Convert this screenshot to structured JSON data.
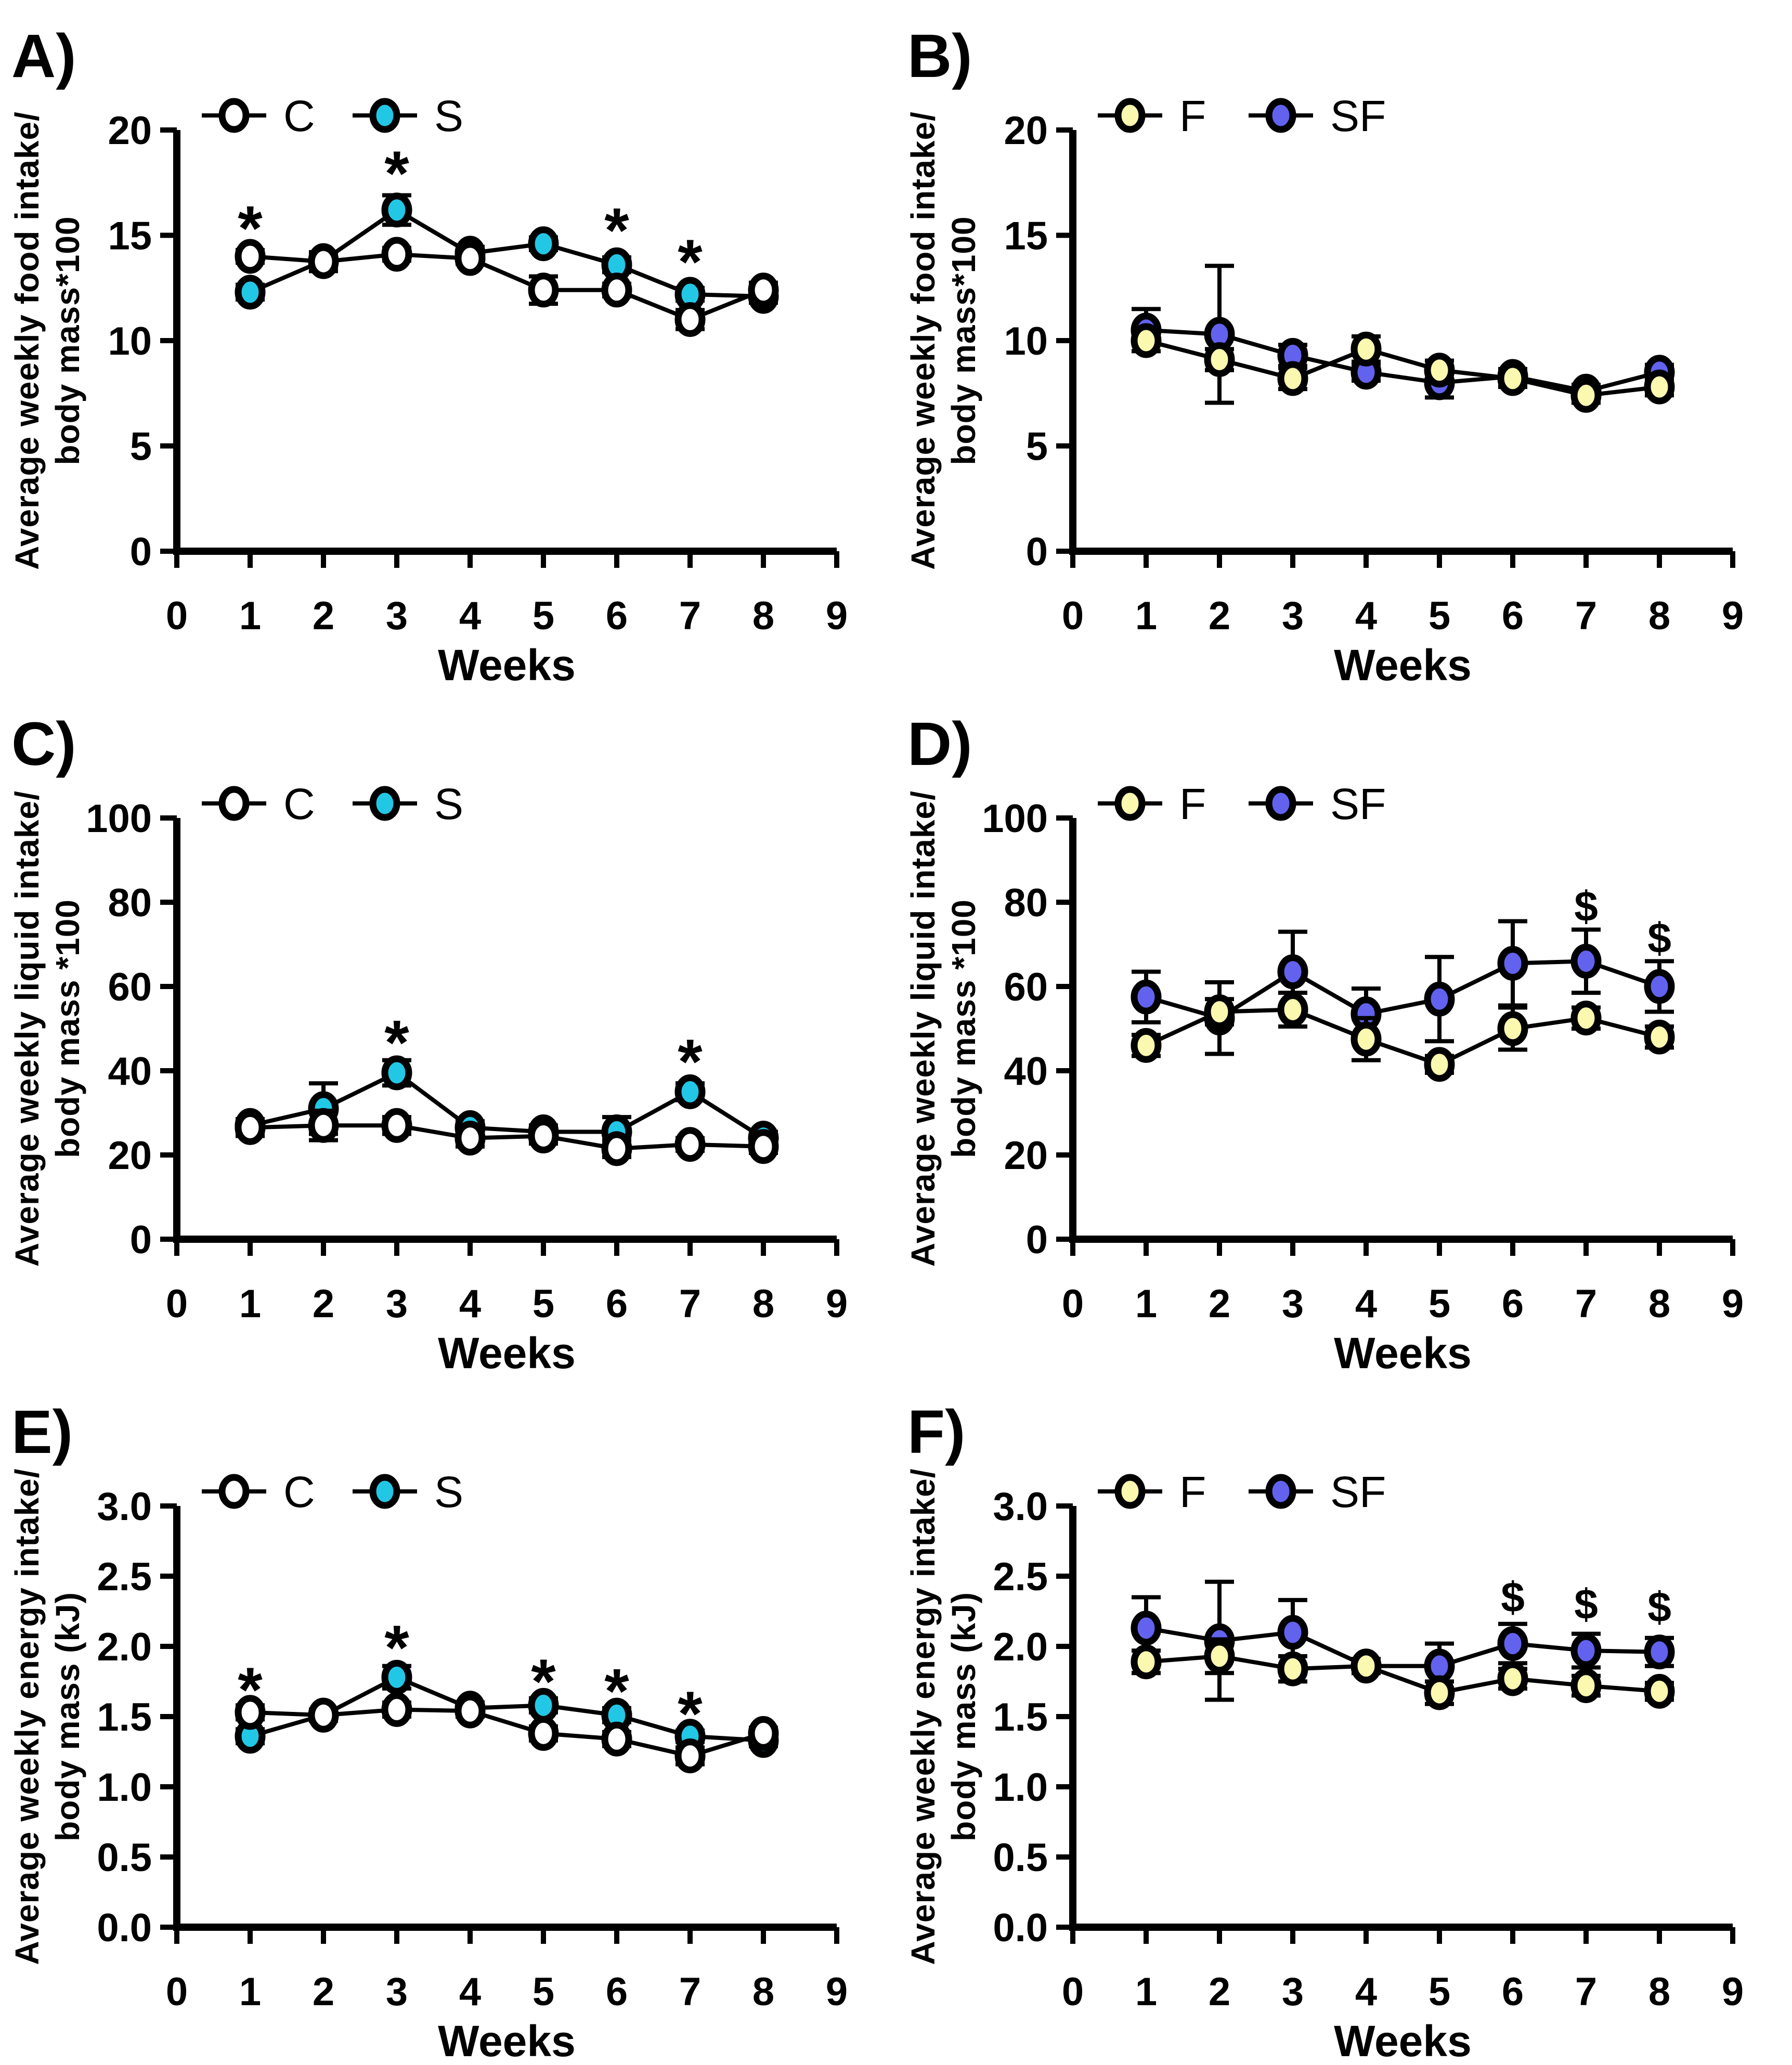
{
  "figure": {
    "background": "#FFFFFF",
    "line_color": "#000000",
    "marker_outline": "#000000",
    "group_colors": {
      "C": "#FFFFFF",
      "S": "#22C7E6",
      "F": "#FBF8AF",
      "SF": "#6262EF"
    }
  },
  "chart_data": [
    {
      "id": "A",
      "label": "A)",
      "type": "line",
      "xlabel": "Weeks",
      "ylabel_lines": [
        "Average weekly food intake/",
        "body mass*100"
      ],
      "xlim": [
        0,
        9
      ],
      "ylim": [
        0,
        20
      ],
      "xtick_labels": [
        "0",
        "1",
        "2",
        "3",
        "4",
        "5",
        "6",
        "7",
        "8",
        "9"
      ],
      "ytick_values": [
        0,
        5,
        10,
        15,
        20
      ],
      "ytick_labels": [
        "0",
        "5",
        "10",
        "15",
        "20"
      ],
      "legend": [
        {
          "label": "C",
          "fill": "#FFFFFF"
        },
        {
          "label": "S",
          "fill": "#22C7E6"
        }
      ],
      "series": [
        {
          "name": "C",
          "fill": "#FFFFFF",
          "x": [
            1,
            2,
            3,
            4,
            5,
            6,
            7,
            8
          ],
          "y": [
            14.0,
            13.75,
            14.1,
            13.9,
            12.4,
            12.4,
            11.0,
            12.4
          ],
          "err": [
            0.3,
            0.45,
            0.3,
            0.25,
            0.65,
            0.3,
            0.45,
            0.35
          ]
        },
        {
          "name": "S",
          "fill": "#22C7E6",
          "x": [
            1,
            2,
            3,
            4,
            5,
            6,
            7,
            8
          ],
          "y": [
            12.3,
            13.8,
            16.2,
            14.15,
            14.6,
            13.6,
            12.2,
            12.1
          ],
          "err": [
            0.35,
            0.3,
            0.7,
            0.3,
            0.3,
            0.35,
            0.3,
            0.3
          ]
        }
      ],
      "annotations": [
        {
          "x": 1,
          "y": 15.4,
          "text": "*"
        },
        {
          "x": 3,
          "y": 18.0,
          "text": "*"
        },
        {
          "x": 6,
          "y": 15.3,
          "text": "*"
        },
        {
          "x": 7,
          "y": 13.8,
          "text": "*"
        }
      ]
    },
    {
      "id": "B",
      "label": "B)",
      "type": "line",
      "xlabel": "Weeks",
      "ylabel_lines": [
        "Average weekly food intake/",
        "body mass*100"
      ],
      "xlim": [
        0,
        9
      ],
      "ylim": [
        0,
        20
      ],
      "xtick_labels": [
        "0",
        "1",
        "2",
        "3",
        "4",
        "5",
        "6",
        "7",
        "8",
        "9"
      ],
      "ytick_values": [
        0,
        5,
        10,
        15,
        20
      ],
      "ytick_labels": [
        "0",
        "5",
        "10",
        "15",
        "20"
      ],
      "legend": [
        {
          "label": "F",
          "fill": "#FBF8AF"
        },
        {
          "label": "SF",
          "fill": "#6262EF"
        }
      ],
      "series": [
        {
          "name": "F",
          "fill": "#FBF8AF",
          "x": [
            1,
            2,
            3,
            4,
            5,
            6,
            7,
            8
          ],
          "y": [
            10.0,
            9.1,
            8.2,
            9.6,
            8.6,
            8.2,
            7.4,
            7.8
          ],
          "err": [
            0.5,
            0.5,
            0.5,
            0.6,
            0.45,
            0.4,
            0.35,
            0.4
          ]
        },
        {
          "name": "SF",
          "fill": "#6262EF",
          "x": [
            1,
            2,
            3,
            4,
            5,
            6,
            7,
            8
          ],
          "y": [
            10.5,
            10.3,
            9.3,
            8.5,
            8.0,
            8.3,
            7.6,
            8.5
          ],
          "err": [
            1.0,
            3.25,
            0.5,
            0.4,
            0.7,
            0.35,
            0.3,
            0.35
          ]
        }
      ],
      "annotations": []
    },
    {
      "id": "C",
      "label": "C)",
      "type": "line",
      "xlabel": "Weeks",
      "ylabel_lines": [
        "Average weekly liquid intake/",
        "body mass *100"
      ],
      "xlim": [
        0,
        9
      ],
      "ylim": [
        0,
        100
      ],
      "xtick_labels": [
        "0",
        "1",
        "2",
        "3",
        "4",
        "5",
        "6",
        "7",
        "8",
        "9"
      ],
      "ytick_values": [
        0,
        20,
        40,
        60,
        80,
        100
      ],
      "ytick_labels": [
        "0",
        "20",
        "40",
        "60",
        "80",
        "100"
      ],
      "legend": [
        {
          "label": "C",
          "fill": "#FFFFFF"
        },
        {
          "label": "S",
          "fill": "#22C7E6"
        }
      ],
      "series": [
        {
          "name": "C",
          "fill": "#FFFFFF",
          "x": [
            1,
            2,
            3,
            4,
            5,
            6,
            7,
            8
          ],
          "y": [
            26.5,
            27,
            27,
            24,
            24.5,
            21.5,
            22.5,
            22
          ],
          "err": [
            2,
            3.5,
            2,
            2,
            1.8,
            2,
            1.5,
            1.5
          ]
        },
        {
          "name": "S",
          "fill": "#22C7E6",
          "x": [
            1,
            2,
            3,
            4,
            5,
            6,
            7,
            8
          ],
          "y": [
            27,
            31,
            39.5,
            26.5,
            25.5,
            25.5,
            35,
            24
          ],
          "err": [
            1.5,
            6,
            3,
            1.5,
            1.5,
            3.5,
            2,
            1.5
          ]
        }
      ],
      "annotations": [
        {
          "x": 3,
          "y": 47,
          "text": "*"
        },
        {
          "x": 7,
          "y": 42.5,
          "text": "*"
        }
      ]
    },
    {
      "id": "D",
      "label": "D)",
      "type": "line",
      "xlabel": "Weeks",
      "ylabel_lines": [
        "Average weekly liquid intake/",
        "body mass *100"
      ],
      "xlim": [
        0,
        9
      ],
      "ylim": [
        0,
        100
      ],
      "xtick_labels": [
        "0",
        "1",
        "2",
        "3",
        "4",
        "5",
        "6",
        "7",
        "8",
        "9"
      ],
      "ytick_values": [
        0,
        20,
        40,
        60,
        80,
        100
      ],
      "ytick_labels": [
        "0",
        "20",
        "40",
        "60",
        "80",
        "100"
      ],
      "legend": [
        {
          "label": "F",
          "fill": "#FBF8AF"
        },
        {
          "label": "SF",
          "fill": "#6262EF"
        }
      ],
      "series": [
        {
          "name": "F",
          "fill": "#FBF8AF",
          "x": [
            1,
            2,
            3,
            4,
            5,
            6,
            7,
            8
          ],
          "y": [
            46,
            54,
            54.5,
            47.5,
            41.5,
            50,
            52.5,
            48
          ],
          "err": [
            2.5,
            3,
            4,
            5,
            2,
            5,
            2.5,
            2.5
          ]
        },
        {
          "name": "SF",
          "fill": "#6262EF",
          "x": [
            1,
            2,
            3,
            4,
            5,
            6,
            7,
            8
          ],
          "y": [
            57.5,
            52.5,
            63.5,
            53.5,
            57,
            65.5,
            66,
            60
          ],
          "err": [
            6,
            8.5,
            9.5,
            6,
            10,
            10,
            7.5,
            6
          ]
        }
      ],
      "annotations": [
        {
          "x": 7,
          "y": 79,
          "text": "$"
        },
        {
          "x": 8,
          "y": 71.5,
          "text": "$"
        }
      ]
    },
    {
      "id": "E",
      "label": "E)",
      "type": "line",
      "xlabel": "Weeks",
      "ylabel_lines": [
        "Average weekly energy intake/",
        "body mass (kJ)"
      ],
      "xlim": [
        0,
        9
      ],
      "ylim": [
        0,
        3
      ],
      "xtick_labels": [
        "0",
        "1",
        "2",
        "3",
        "4",
        "5",
        "6",
        "7",
        "8",
        "9"
      ],
      "ytick_values": [
        0,
        0.5,
        1.0,
        1.5,
        2.0,
        2.5,
        3.0
      ],
      "ytick_labels": [
        "0.0",
        "0.5",
        "1.0",
        "1.5",
        "2.0",
        "2.5",
        "3.0"
      ],
      "legend": [
        {
          "label": "C",
          "fill": "#FFFFFF"
        },
        {
          "label": "S",
          "fill": "#22C7E6"
        }
      ],
      "series": [
        {
          "name": "C",
          "fill": "#FFFFFF",
          "x": [
            1,
            2,
            3,
            4,
            5,
            6,
            7,
            8
          ],
          "y": [
            1.53,
            1.51,
            1.55,
            1.54,
            1.38,
            1.34,
            1.22,
            1.38
          ],
          "err": [
            0.05,
            0.04,
            0.05,
            0.04,
            0.05,
            0.05,
            0.06,
            0.04
          ]
        },
        {
          "name": "S",
          "fill": "#22C7E6",
          "x": [
            1,
            2,
            3,
            4,
            5,
            6,
            7,
            8
          ],
          "y": [
            1.36,
            1.51,
            1.78,
            1.56,
            1.58,
            1.51,
            1.36,
            1.33
          ],
          "err": [
            0.05,
            0.04,
            0.08,
            0.04,
            0.05,
            0.05,
            0.04,
            0.04
          ]
        }
      ],
      "annotations": [
        {
          "x": 1,
          "y": 1.7,
          "text": "*"
        },
        {
          "x": 3,
          "y": 2.0,
          "text": "*"
        },
        {
          "x": 5,
          "y": 1.76,
          "text": "*"
        },
        {
          "x": 6,
          "y": 1.69,
          "text": "*"
        },
        {
          "x": 7,
          "y": 1.53,
          "text": "*"
        }
      ]
    },
    {
      "id": "F",
      "label": "F)",
      "type": "line",
      "xlabel": "Weeks",
      "ylabel_lines": [
        "Average weekly energy intake/",
        "body mass (kJ)"
      ],
      "xlim": [
        0,
        9
      ],
      "ylim": [
        0,
        3
      ],
      "xtick_labels": [
        "0",
        "1",
        "2",
        "3",
        "4",
        "5",
        "6",
        "7",
        "8",
        "9"
      ],
      "ytick_values": [
        0,
        0.5,
        1.0,
        1.5,
        2.0,
        2.5,
        3.0
      ],
      "ytick_labels": [
        "0.0",
        "0.5",
        "1.0",
        "1.5",
        "2.0",
        "2.5",
        "3.0"
      ],
      "legend": [
        {
          "label": "F",
          "fill": "#FBF8AF"
        },
        {
          "label": "SF",
          "fill": "#6262EF"
        }
      ],
      "series": [
        {
          "name": "F",
          "fill": "#FBF8AF",
          "x": [
            1,
            2,
            3,
            4,
            5,
            6,
            7,
            8
          ],
          "y": [
            1.89,
            1.93,
            1.84,
            1.86,
            1.67,
            1.77,
            1.72,
            1.68
          ],
          "err": [
            0.08,
            0.12,
            0.09,
            0.05,
            0.08,
            0.07,
            0.07,
            0.06
          ]
        },
        {
          "name": "SF",
          "fill": "#6262EF",
          "x": [
            1,
            2,
            3,
            4,
            5,
            6,
            7,
            8
          ],
          "y": [
            2.13,
            2.04,
            2.1,
            1.86,
            1.86,
            2.02,
            1.97,
            1.96
          ],
          "err": [
            0.22,
            0.42,
            0.23,
            0.05,
            0.16,
            0.14,
            0.12,
            0.1
          ]
        }
      ],
      "annotations": [
        {
          "x": 6,
          "y": 2.35,
          "text": "$"
        },
        {
          "x": 7,
          "y": 2.3,
          "text": "$"
        },
        {
          "x": 8,
          "y": 2.28,
          "text": "$"
        }
      ]
    }
  ]
}
